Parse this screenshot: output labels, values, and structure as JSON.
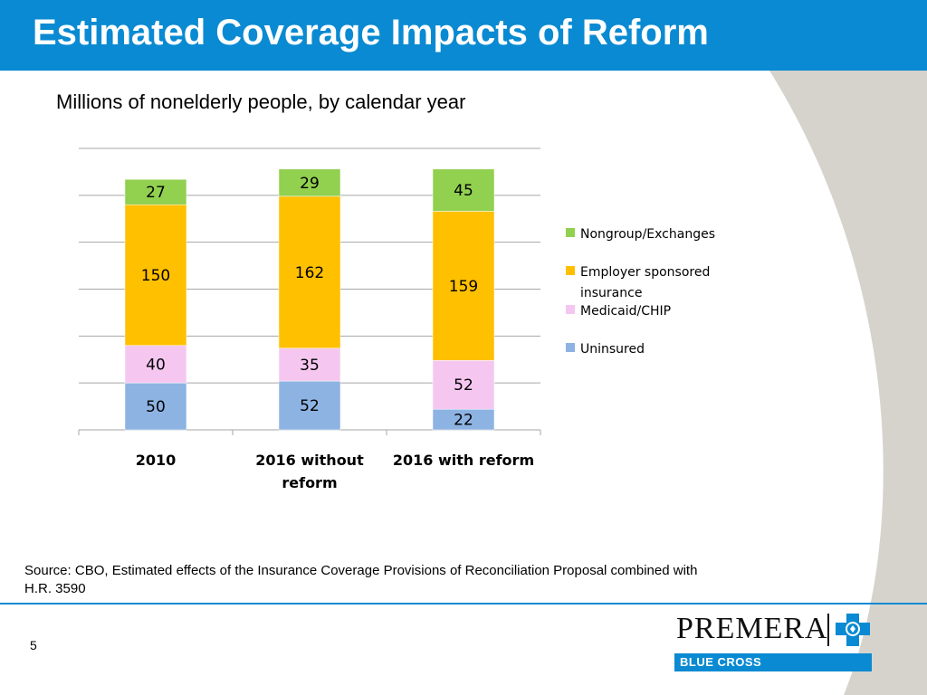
{
  "slide": {
    "title": "Estimated Coverage Impacts of Reform",
    "subtitle": "Millions of nonelderly people, by calendar year",
    "source": "Source: CBO, Estimated effects of the Insurance Coverage Provisions of Reconciliation Proposal combined with H.R. 3590",
    "page_number": "5"
  },
  "logo": {
    "word": "PREMERA",
    "band_text": "BLUE CROSS"
  },
  "colors": {
    "title_bar": "#0a8ad2",
    "deco_gray": "#d6d3cd"
  },
  "chart_data": {
    "type": "bar",
    "stacked": true,
    "categories": [
      [
        "2010"
      ],
      [
        "2016 without",
        "reform"
      ],
      [
        "2016 with reform"
      ]
    ],
    "series": [
      {
        "name": "Uninsured",
        "color": "#8db3e2",
        "values": [
          50,
          52,
          22
        ]
      },
      {
        "name": "Medicaid/CHIP",
        "color": "#f5c7f0",
        "values": [
          40,
          35,
          52
        ]
      },
      {
        "name": "Employer sponsored insurance",
        "color": "#ffc000",
        "values": [
          150,
          162,
          159
        ]
      },
      {
        "name": "Nongroup/Exchanges",
        "color": "#92d050",
        "values": [
          27,
          29,
          45
        ]
      }
    ],
    "ylim": [
      0,
      300
    ],
    "y_gridline_step": 50,
    "grid": true,
    "legend_position": "right",
    "legend_order": [
      "Nongroup/Exchanges",
      "Employer sponsored insurance",
      "Medicaid/CHIP",
      "Uninsured"
    ],
    "legend_lines": {
      "Nongroup/Exchanges": [
        "Nongroup/Exchanges"
      ],
      "Employer sponsored insurance": [
        "Employer sponsored",
        "insurance"
      ],
      "Medicaid/CHIP": [
        "Medicaid/CHIP"
      ],
      "Uninsured": [
        "Uninsured"
      ]
    }
  }
}
